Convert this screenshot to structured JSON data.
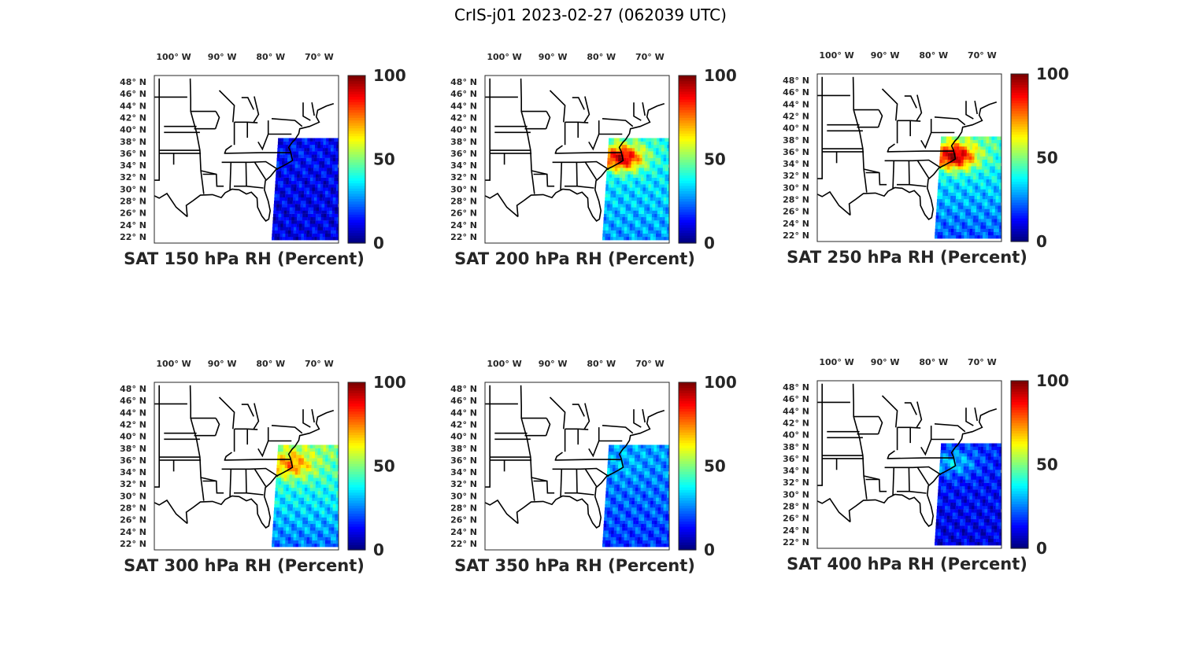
{
  "figure": {
    "title": "CrIS-j01 2023-02-27 (062039 UTC)"
  },
  "chart_data": {
    "type": "heatmap",
    "colormap": "jet",
    "lon_ticks": [
      "100° W",
      "90° W",
      "80° W",
      "70° W"
    ],
    "lat_ticks": [
      "48° N",
      "46° N",
      "44° N",
      "42° N",
      "40° N",
      "38° N",
      "36° N",
      "34° N",
      "32° N",
      "30° N",
      "28° N",
      "26° N",
      "24° N",
      "22° N"
    ],
    "colorbar": {
      "min": 0,
      "max": 100,
      "ticks": [
        "100",
        "50",
        "0"
      ]
    },
    "panels": [
      {
        "title": "SAT 150 hPa RH (Percent)",
        "mean_rh_south": 10,
        "mean_rh_north": 12,
        "moist_band_rh": 14
      },
      {
        "title": "SAT 200 hPa RH (Percent)",
        "mean_rh_south": 28,
        "mean_rh_north": 40,
        "moist_band_rh": 95
      },
      {
        "title": "SAT 250 hPa RH (Percent)",
        "mean_rh_south": 22,
        "mean_rh_north": 45,
        "moist_band_rh": 98
      },
      {
        "title": "SAT 300 hPa RH (Percent)",
        "mean_rh_south": 25,
        "mean_rh_north": 50,
        "moist_band_rh": 75
      },
      {
        "title": "SAT 350 hPa RH (Percent)",
        "mean_rh_south": 18,
        "mean_rh_north": 28,
        "moist_band_rh": 30
      },
      {
        "title": "SAT 400 hPa RH (Percent)",
        "mean_rh_south": 10,
        "mean_rh_north": 16,
        "moist_band_rh": 32
      }
    ]
  }
}
